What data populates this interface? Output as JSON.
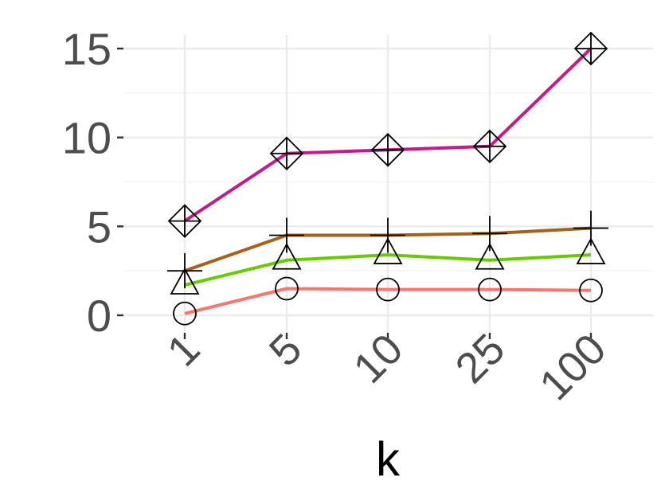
{
  "chart_data": {
    "type": "line",
    "title": "",
    "xlabel": "k",
    "ylabel": "",
    "categories": [
      "1",
      "5",
      "10",
      "25",
      "100"
    ],
    "ylim": [
      -0.7,
      15.6
    ],
    "y_ticks": [
      0,
      5,
      10,
      15
    ],
    "y_tick_labels": [
      "0",
      "5",
      "10",
      "15"
    ],
    "grid": true,
    "legend": "none",
    "series": [
      {
        "marker": "circle",
        "color": "#F8766D",
        "values": [
          0.1,
          1.5,
          1.45,
          1.45,
          1.4
        ]
      },
      {
        "marker": "triangle",
        "color": "#66CC00",
        "values": [
          1.7,
          3.1,
          3.4,
          3.1,
          3.4
        ]
      },
      {
        "marker": "plus",
        "color": "#A6611A",
        "values": [
          2.5,
          4.5,
          4.5,
          4.6,
          4.9
        ]
      },
      {
        "marker": "diamond-plus",
        "color": "#C51B8A",
        "values": [
          5.3,
          9.1,
          9.3,
          9.5,
          15.0
        ]
      }
    ]
  }
}
